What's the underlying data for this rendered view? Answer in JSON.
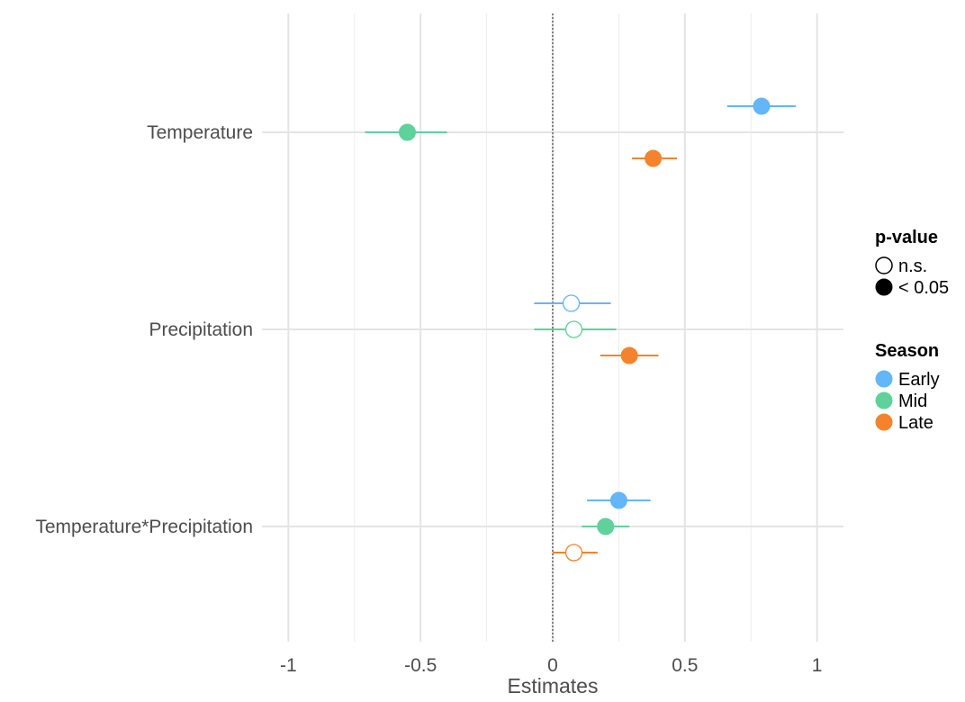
{
  "chart_data": {
    "type": "scatter",
    "xlabel": "Estimates",
    "ylabel": "",
    "xlim": [
      -1.1,
      1.1
    ],
    "x_ticks": [
      -1,
      -0.5,
      0,
      0.5,
      1
    ],
    "x_tick_labels": [
      "-1",
      "-0.5",
      "0",
      "0.5",
      "1"
    ],
    "reference_line": 0,
    "grid": true,
    "categories": [
      "Temperature",
      "Precipitation",
      "Temperature*Precipitation"
    ],
    "series": [
      {
        "name": "Early",
        "color": "#63b6f7",
        "points": [
          {
            "category": "Temperature",
            "estimate": 0.79,
            "lower": 0.66,
            "upper": 0.92,
            "significant": true
          },
          {
            "category": "Precipitation",
            "estimate": 0.07,
            "lower": -0.07,
            "upper": 0.22,
            "significant": false
          },
          {
            "category": "Temperature*Precipitation",
            "estimate": 0.25,
            "lower": 0.13,
            "upper": 0.37,
            "significant": true
          }
        ]
      },
      {
        "name": "Mid",
        "color": "#5ed29a",
        "points": [
          {
            "category": "Temperature",
            "estimate": -0.55,
            "lower": -0.71,
            "upper": -0.4,
            "significant": true
          },
          {
            "category": "Precipitation",
            "estimate": 0.08,
            "lower": -0.07,
            "upper": 0.24,
            "significant": false
          },
          {
            "category": "Temperature*Precipitation",
            "estimate": 0.2,
            "lower": 0.11,
            "upper": 0.29,
            "significant": true
          }
        ]
      },
      {
        "name": "Late",
        "color": "#f5832d",
        "points": [
          {
            "category": "Temperature",
            "estimate": 0.38,
            "lower": 0.3,
            "upper": 0.47,
            "significant": true
          },
          {
            "category": "Precipitation",
            "estimate": 0.29,
            "lower": 0.18,
            "upper": 0.4,
            "significant": true
          },
          {
            "category": "Temperature*Precipitation",
            "estimate": 0.08,
            "lower": 0.0,
            "upper": 0.17,
            "significant": false
          }
        ]
      }
    ],
    "legends": [
      {
        "title": "p-value",
        "entries": [
          {
            "label": "n.s.",
            "filled": false,
            "color": "#000000"
          },
          {
            "label": "< 0.05",
            "filled": true,
            "color": "#000000"
          }
        ]
      },
      {
        "title": "Season",
        "entries": [
          {
            "label": "Early",
            "filled": true,
            "color": "#63b6f7"
          },
          {
            "label": "Mid",
            "filled": true,
            "color": "#5ed29a"
          },
          {
            "label": "Late",
            "filled": true,
            "color": "#f5832d"
          }
        ]
      }
    ],
    "legend_position": "right"
  }
}
